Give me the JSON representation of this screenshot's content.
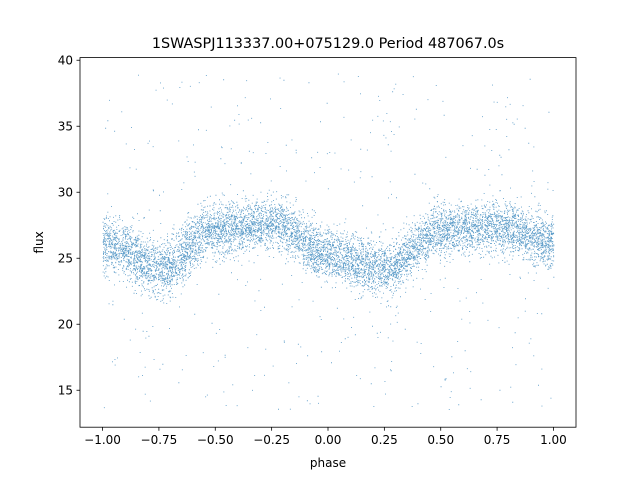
{
  "chart_data": {
    "type": "scatter",
    "title": "1SWASPJ113337.00+075129.0 Period 487067.0s",
    "xlabel": "phase",
    "ylabel": "flux",
    "xlim": [
      -1.1,
      1.1
    ],
    "ylim": [
      12.2,
      40.2
    ],
    "xticks": [
      -1.0,
      -0.75,
      -0.5,
      -0.25,
      0.0,
      0.25,
      0.5,
      0.75,
      1.0
    ],
    "xtick_labels": [
      "−1.00",
      "−0.75",
      "−0.50",
      "−0.25",
      "0.00",
      "0.25",
      "0.50",
      "0.75",
      "1.00"
    ],
    "yticks": [
      15,
      20,
      25,
      30,
      35,
      40
    ],
    "ytick_labels": [
      "15",
      "20",
      "25",
      "30",
      "35",
      "40"
    ],
    "grid": false,
    "marker_color": "#1f77b4",
    "series": [
      {
        "profile_phase": [
          -1.0,
          -0.75,
          -0.5,
          -0.25,
          0.0,
          0.25,
          0.5,
          0.75,
          1.0
        ],
        "profile_mean_flux": [
          26.2,
          24.3,
          27.2,
          27.6,
          25.3,
          24.2,
          27.2,
          27.4,
          26.2
        ],
        "band_lower_flux": [
          22.5,
          20.5,
          23.5,
          24.5,
          21.5,
          20.5,
          23.5,
          24.0,
          22.5
        ],
        "band_upper_flux": [
          30.0,
          28.5,
          31.0,
          31.5,
          29.0,
          28.0,
          30.5,
          31.0,
          30.0
        ],
        "outlier_range_flux": [
          13.5,
          39.0
        ]
      }
    ]
  }
}
